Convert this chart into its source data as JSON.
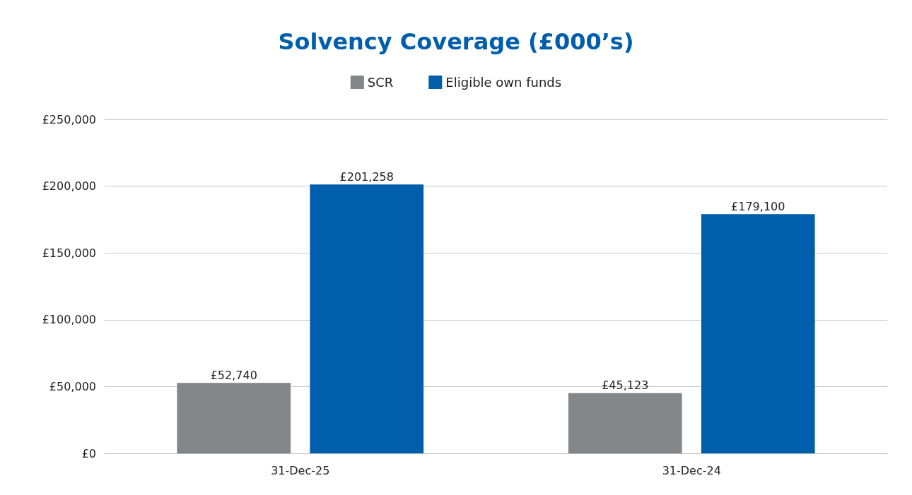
{
  "chart_data": {
    "type": "bar",
    "title": "Solvency Coverage (£000’s)",
    "categories": [
      "31-Dec-25",
      "31-Dec-24"
    ],
    "series": [
      {
        "name": "SCR",
        "color": "#848589",
        "values": [
          52740,
          45123
        ],
        "value_labels": [
          "£52,740",
          "£45,123"
        ]
      },
      {
        "name": "Eligible own funds",
        "color": "#005eab",
        "values": [
          201258,
          179100
        ],
        "value_labels": [
          "£201,258",
          "£179,100"
        ]
      }
    ],
    "ylim": [
      0,
      250000
    ],
    "yticks": [
      {
        "value": 0,
        "label": "£0"
      },
      {
        "value": 50000,
        "label": "£50,000"
      },
      {
        "value": 100000,
        "label": "£100,000"
      },
      {
        "value": 150000,
        "label": "£150,000"
      },
      {
        "value": 200000,
        "label": "£200,000"
      },
      {
        "value": 250000,
        "label": "£250,000"
      }
    ],
    "grid": "y",
    "legend": "top"
  }
}
